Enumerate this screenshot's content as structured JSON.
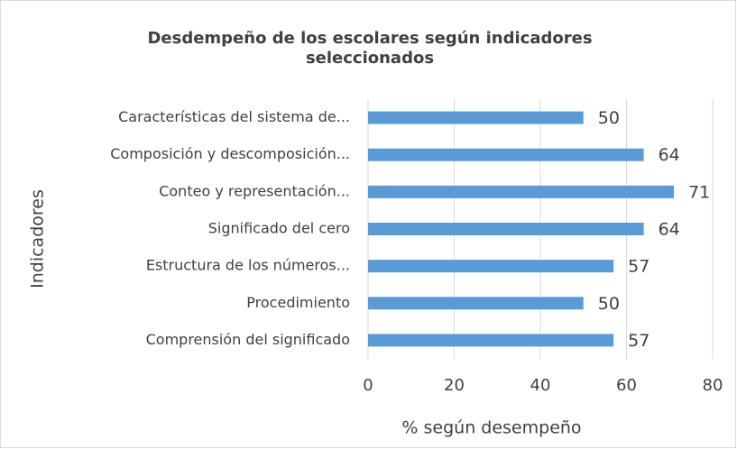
{
  "chart_data": {
    "type": "bar",
    "orientation": "horizontal",
    "title": "Desdempeño de los escolares según indicadores seleccionados",
    "xlabel": "% según desempeño",
    "ylabel": "Indicadores",
    "categories": [
      "Características del sistema de...",
      "Composición y descomposición...",
      "Conteo y representación...",
      "Significado del cero",
      "Estructura de los números...",
      "Procedimiento",
      "Comprensión del significado"
    ],
    "values": [
      50,
      64,
      71,
      64,
      57,
      50,
      57
    ],
    "color": "#5b9bd5",
    "xlim": [
      0,
      80
    ],
    "xticks": [
      0,
      20,
      40,
      60,
      80
    ],
    "grid": true
  }
}
